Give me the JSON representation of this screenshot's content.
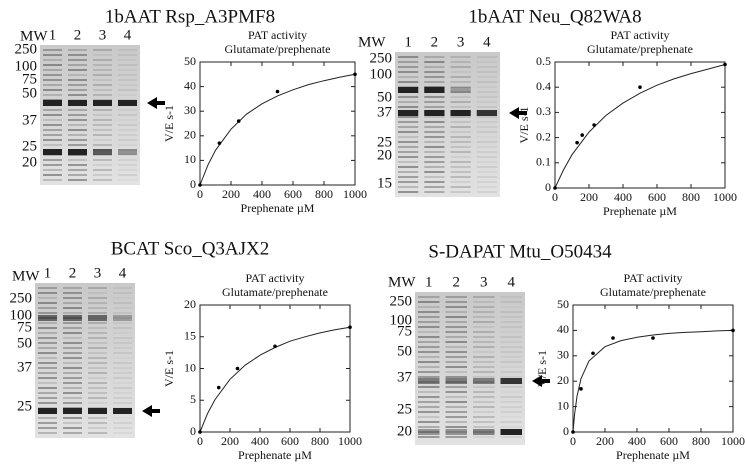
{
  "gels": [
    {
      "title": "1bAAT Rsp_A3PMF8",
      "mw_label": "MW",
      "lanes": [
        "1",
        "2",
        "3",
        "4"
      ],
      "markers": [
        "250",
        "100",
        "75",
        "50",
        "37",
        "25",
        "20"
      ]
    },
    {
      "title": "1bAAT Neu_Q82WA8",
      "mw_label": "MW",
      "lanes": [
        "1",
        "2",
        "3",
        "4"
      ],
      "markers": [
        "250",
        "100",
        "50",
        "37",
        "25",
        "20",
        "15"
      ]
    },
    {
      "title": "BCAT Sco_Q3AJX2",
      "mw_label": "MW",
      "lanes": [
        "1",
        "2",
        "3",
        "4"
      ],
      "markers": [
        "250",
        "100",
        "75",
        "50",
        "37",
        "25"
      ]
    },
    {
      "title": "S-DAPAT Mtu_O50434",
      "mw_label": "MW",
      "lanes": [
        "1",
        "2",
        "3",
        "4"
      ],
      "markers": [
        "250",
        "100",
        "75",
        "50",
        "37",
        "25",
        "20"
      ]
    }
  ],
  "chart_data": [
    {
      "type": "scatter",
      "title": "PAT activity",
      "subtitle": "Glutamate/prephenate",
      "x_label": "Prephenate µM",
      "y_label": "V/E s-1",
      "x": [
        0,
        125,
        250,
        500,
        1000
      ],
      "values": [
        0,
        17,
        26,
        38,
        45
      ],
      "fit": {
        "x": [
          0,
          50,
          100,
          200,
          300,
          400,
          500,
          600,
          700,
          800,
          900,
          1000
        ],
        "values": [
          0,
          8.0,
          14.1,
          22.7,
          28.8,
          33.0,
          36.2,
          38.7,
          40.8,
          42.4,
          43.8,
          45.0
        ]
      },
      "xlim": [
        0,
        1000
      ],
      "xticks": [
        0,
        200,
        400,
        600,
        800,
        1000
      ],
      "ylim": [
        0,
        50
      ],
      "yticks": [
        0,
        10,
        20,
        30,
        40,
        50
      ]
    },
    {
      "type": "scatter",
      "title": "PAT activity",
      "subtitle": "Glutamate/prephenate",
      "x_label": "Prephenate µM",
      "y_label": "V/E s-1",
      "x": [
        0,
        130,
        160,
        230,
        500,
        1000
      ],
      "values": [
        0,
        0.18,
        0.21,
        0.25,
        0.4,
        0.49
      ],
      "fit": {
        "x": [
          0,
          50,
          100,
          200,
          300,
          400,
          500,
          600,
          700,
          800,
          900,
          1000
        ],
        "values": [
          0,
          0.072,
          0.132,
          0.222,
          0.288,
          0.337,
          0.376,
          0.408,
          0.433,
          0.454,
          0.472,
          0.49
        ]
      },
      "xlim": [
        0,
        1000
      ],
      "xticks": [
        0,
        200,
        400,
        600,
        800,
        1000
      ],
      "ylim": [
        0,
        0.5
      ],
      "yticks": [
        0,
        0.1,
        0.2,
        0.3,
        0.4,
        0.5
      ]
    },
    {
      "type": "scatter",
      "title": "PAT activity",
      "subtitle": "Glutamate/prephenate",
      "x_label": "Prephenate µM",
      "y_label": "V/E s-1",
      "x": [
        0,
        125,
        250,
        500,
        1000
      ],
      "values": [
        0,
        7,
        10,
        13.5,
        16.5
      ],
      "fit": {
        "x": [
          0,
          50,
          100,
          200,
          300,
          400,
          500,
          600,
          700,
          800,
          900,
          1000
        ],
        "values": [
          0,
          2.9,
          5.1,
          8.3,
          10.5,
          12.1,
          13.3,
          14.3,
          15.0,
          15.6,
          16.1,
          16.5
        ]
      },
      "xlim": [
        0,
        1000
      ],
      "xticks": [
        0,
        200,
        400,
        600,
        800,
        1000
      ],
      "ylim": [
        0,
        20
      ],
      "yticks": [
        0,
        5,
        10,
        15,
        20
      ]
    },
    {
      "type": "scatter",
      "title": "PAT activity",
      "subtitle": "Glutamate/prephenate",
      "x_label": "Prephenate µM",
      "y_label": "V/E s-1",
      "x": [
        0,
        50,
        125,
        250,
        500,
        1000
      ],
      "values": [
        0,
        17,
        31,
        37,
        37,
        40
      ],
      "fit": {
        "x": [
          0,
          10,
          25,
          50,
          100,
          200,
          300,
          400,
          500,
          600,
          700,
          800,
          900,
          1000
        ],
        "values": [
          0,
          7,
          14,
          21,
          28,
          33.6,
          36,
          37.3,
          38.2,
          38.8,
          39.2,
          39.5,
          39.8,
          40
        ]
      },
      "xlim": [
        0,
        1000
      ],
      "xticks": [
        0,
        200,
        400,
        600,
        800,
        1000
      ],
      "ylim": [
        0,
        50
      ],
      "yticks": [
        0,
        10,
        20,
        30,
        40,
        50
      ]
    }
  ]
}
